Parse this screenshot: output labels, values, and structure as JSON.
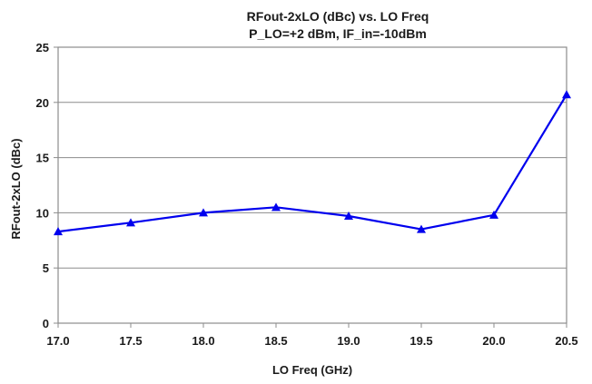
{
  "chart_data": {
    "type": "line",
    "title": "RFout-2xLO (dBc) vs. LO Freq",
    "subtitle": "P_LO=+2 dBm, IF_in=-10dBm",
    "xlabel": "LO Freq (GHz)",
    "ylabel": "RFout-2xLO (dBc)",
    "xlim": [
      17.0,
      20.5
    ],
    "ylim": [
      0,
      25
    ],
    "x_ticks": [
      "17.0",
      "17.5",
      "18.0",
      "18.5",
      "19.0",
      "19.5",
      "20.0",
      "20.5"
    ],
    "y_ticks": [
      "0",
      "5",
      "10",
      "15",
      "20",
      "25"
    ],
    "grid": "horizontal",
    "legend": "none",
    "series": [
      {
        "color": "#0000ee",
        "marker": "triangle",
        "x": [
          17.0,
          17.5,
          18.0,
          18.5,
          19.0,
          19.5,
          20.0,
          20.5
        ],
        "y": [
          8.3,
          9.1,
          10.0,
          10.5,
          9.7,
          8.5,
          9.8,
          20.7
        ]
      }
    ],
    "colors": {
      "grid": "#8c8c8c",
      "plot_border": "#8c8c8c"
    }
  }
}
